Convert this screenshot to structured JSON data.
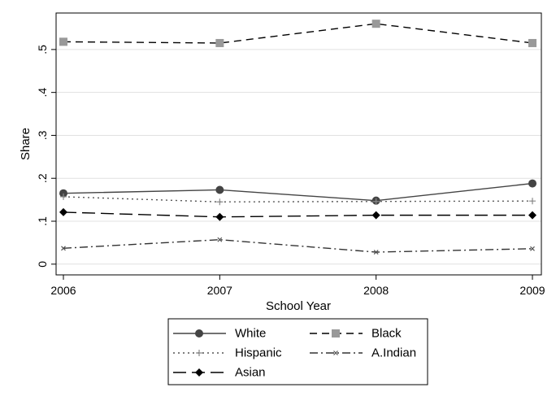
{
  "chart_data": {
    "type": "line",
    "xlabel": "School Year",
    "ylabel": "Share",
    "x": [
      2006,
      2007,
      2008,
      2009
    ],
    "x_tick_labels": [
      "2006",
      "2007",
      "2008",
      "2009"
    ],
    "xlim": [
      2006,
      2009
    ],
    "ylim": [
      -0.025,
      0.585
    ],
    "y_ticks": [
      0,
      0.1,
      0.2,
      0.3,
      0.4,
      0.5
    ],
    "y_tick_labels": [
      "0",
      ".1",
      ".2",
      ".3",
      ".4",
      ".5"
    ],
    "grid": true,
    "legend_position": "bottom",
    "series": [
      {
        "name": "White",
        "values": [
          0.165,
          0.173,
          0.148,
          0.188
        ],
        "color": "#444444",
        "dash": "solid",
        "marker": "circle"
      },
      {
        "name": "Black",
        "values": [
          0.518,
          0.515,
          0.56,
          0.515
        ],
        "color": "#000000",
        "marker_color": "#999999",
        "dash": "dashed",
        "marker": "square"
      },
      {
        "name": "Hispanic",
        "values": [
          0.157,
          0.145,
          0.146,
          0.147
        ],
        "color": "#555555",
        "marker_color": "#888888",
        "dash": "dotted",
        "marker": "plus"
      },
      {
        "name": "A.Indian",
        "values": [
          0.037,
          0.057,
          0.028,
          0.036
        ],
        "color": "#333333",
        "marker_color": "#555555",
        "dash": "dashdot",
        "marker": "x"
      },
      {
        "name": "Asian",
        "values": [
          0.121,
          0.11,
          0.114,
          0.114
        ],
        "color": "#000000",
        "dash": "longdash",
        "marker": "diamond"
      }
    ]
  }
}
